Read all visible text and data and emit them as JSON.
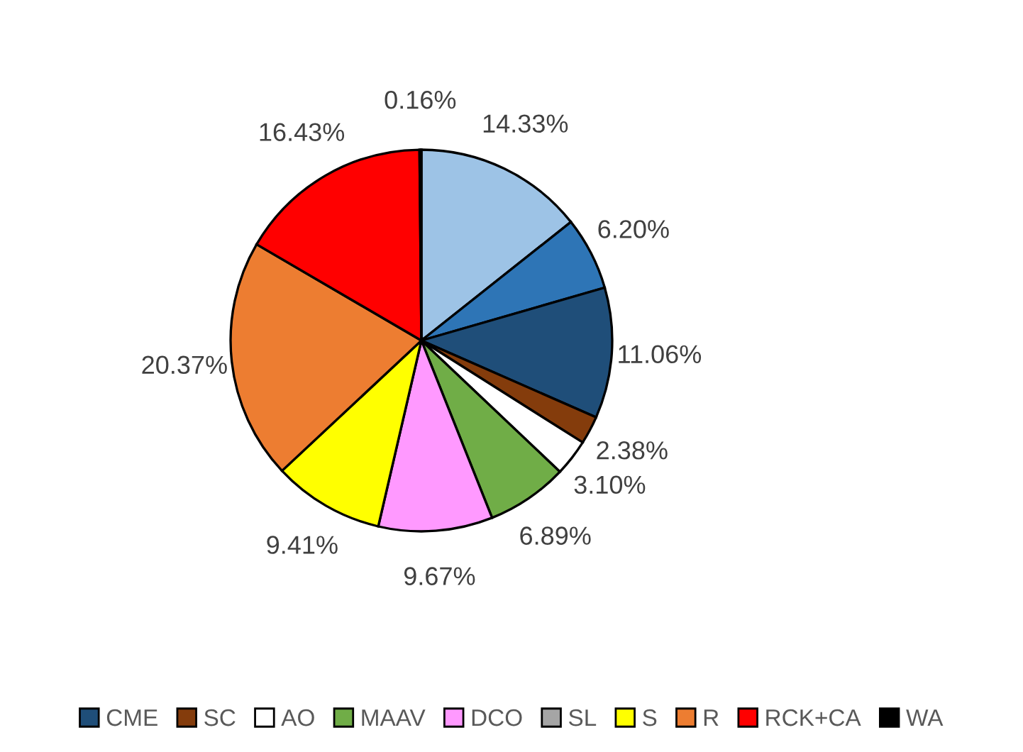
{
  "chart_data": {
    "type": "pie",
    "categories": [
      null,
      null,
      "CME",
      "SC",
      "AO",
      "MAAV",
      "DCO",
      "SL",
      "S",
      "R",
      "RCK+CA",
      "WA"
    ],
    "values": [
      14.33,
      6.2,
      11.06,
      2.38,
      3.1,
      6.89,
      9.67,
      0,
      9.41,
      20.37,
      16.43,
      0.16
    ],
    "value_labels": [
      "14.33%",
      "6.20%",
      "11.06%",
      "2.38%",
      "3.10%",
      "6.89%",
      "9.67%",
      null,
      "9.41%",
      "20.37%",
      "16.43%",
      "0.16%"
    ],
    "colors": [
      "#9dc3e6",
      "#2e75b6",
      "#1f4e79",
      "#843c0c",
      "#ffffff",
      "#70ad47",
      "#ff99ff",
      "#a5a5a5",
      "#ffff00",
      "#ed7d31",
      "#ff0000",
      "#000000"
    ],
    "legend": "bottom"
  }
}
